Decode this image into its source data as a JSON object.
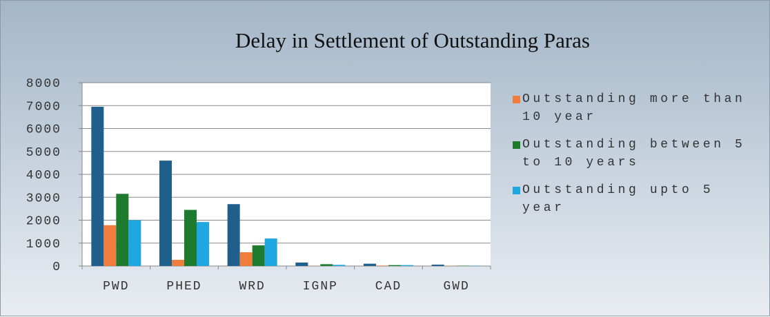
{
  "chart_data": {
    "type": "bar",
    "title": "Delay in Settlement of Outstanding Paras",
    "categories": [
      "PWD",
      "PHED",
      "WRD",
      "IGNP",
      "CAD",
      "GWD"
    ],
    "series": [
      {
        "color": "#1f5f8b",
        "values": [
          6950,
          4600,
          2700,
          150,
          100,
          60
        ]
      },
      {
        "name": "Outstanding more than 10 year",
        "color": "#f07d3c",
        "values": [
          1780,
          270,
          600,
          10,
          20,
          10
        ]
      },
      {
        "name": "Outstanding between 5 to 10 years",
        "color": "#1e7b2e",
        "values": [
          3150,
          2450,
          900,
          80,
          40,
          15
        ]
      },
      {
        "name": "Outstanding upto 5 year",
        "color": "#1ea7e0",
        "values": [
          2000,
          1920,
          1200,
          50,
          40,
          15
        ]
      }
    ],
    "ylim": [
      0,
      8000
    ],
    "yticks": [
      0,
      1000,
      2000,
      3000,
      4000,
      5000,
      6000,
      7000,
      8000
    ],
    "grid": true,
    "legend": "right"
  }
}
